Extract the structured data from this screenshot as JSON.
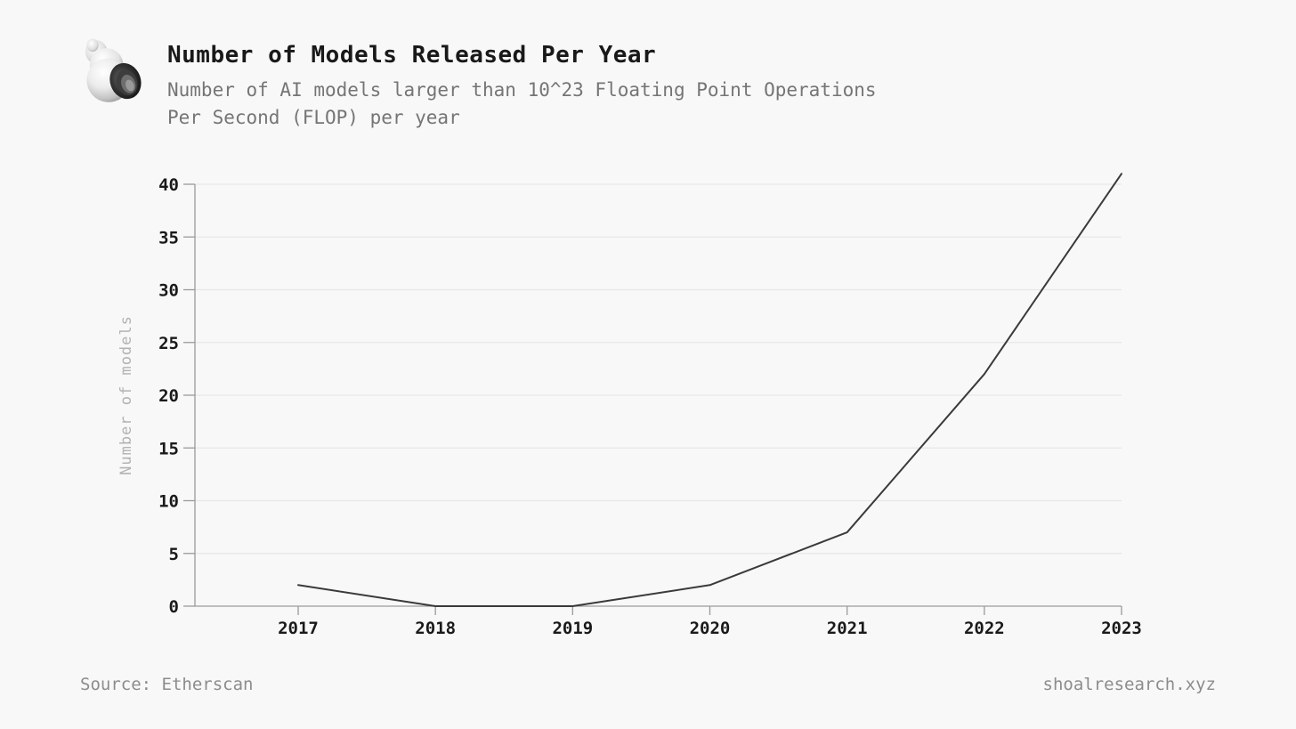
{
  "header": {
    "title": "Number of Models Released Per Year",
    "subtitle_line1": "Number of AI models larger than 10^23 Floating Point Operations",
    "subtitle_line2": "Per Second (FLOP) per year",
    "logo": "shell-logo"
  },
  "footer": {
    "source": "Source: Etherscan",
    "site": "shoalresearch.xyz"
  },
  "chart_data": {
    "type": "line",
    "title": "Number of Models Released Per Year",
    "subtitle": "Number of AI models larger than 10^23 Floating Point Operations Per Second (FLOP) per year",
    "x": [
      2017,
      2018,
      2019,
      2020,
      2021,
      2022,
      2023
    ],
    "series": [
      {
        "name": "Number of models",
        "values": [
          2,
          0,
          0,
          2,
          7,
          22,
          41
        ]
      }
    ],
    "xlabel": "",
    "ylabel": "Number of models",
    "ylim": [
      0,
      40
    ],
    "yticks": [
      0,
      5,
      10,
      15,
      20,
      25,
      30,
      35,
      40
    ],
    "grid": "horizontal-only",
    "legend": "none",
    "colors": {
      "line": "#3a3a3a",
      "grid": "#e7e7e7",
      "axis": "#9a9a9a",
      "tick_label": "#1a1a1a",
      "axis_title": "#b3b3b3",
      "background": "#f8f8f8"
    }
  }
}
